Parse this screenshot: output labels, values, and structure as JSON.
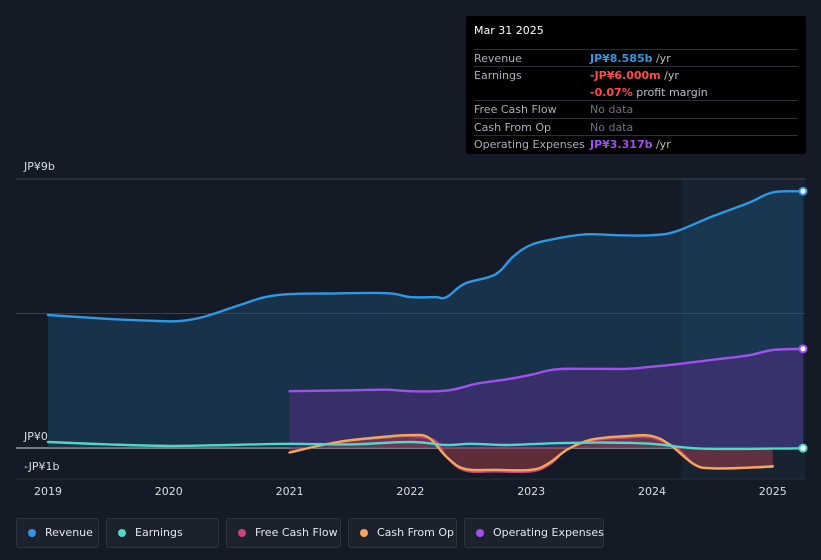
{
  "chart_data": {
    "type": "area",
    "y_axis_labels": {
      "top": "JP¥9b",
      "zero": "JP¥0",
      "bottom": "-JP¥1b"
    },
    "ylim": [
      -1,
      9
    ],
    "x_ticks": [
      "2019",
      "2020",
      "2021",
      "2022",
      "2023",
      "2024",
      "2025"
    ],
    "xlim": [
      2019.0,
      2025.25
    ],
    "forecast_region_start": 2024.25,
    "series": [
      {
        "name": "Revenue",
        "color": "#2f97e3",
        "points": [
          [
            2019.0,
            4.45
          ],
          [
            2019.5,
            4.32
          ],
          [
            2019.9,
            4.25
          ],
          [
            2020.1,
            4.25
          ],
          [
            2020.3,
            4.4
          ],
          [
            2020.6,
            4.8
          ],
          [
            2020.8,
            5.05
          ],
          [
            2021.0,
            5.15
          ],
          [
            2021.3,
            5.17
          ],
          [
            2021.8,
            5.18
          ],
          [
            2022.0,
            5.05
          ],
          [
            2022.2,
            5.05
          ],
          [
            2022.3,
            5.05
          ],
          [
            2022.45,
            5.5
          ],
          [
            2022.7,
            5.8
          ],
          [
            2022.85,
            6.4
          ],
          [
            2023.0,
            6.8
          ],
          [
            2023.2,
            7.0
          ],
          [
            2023.45,
            7.15
          ],
          [
            2023.7,
            7.12
          ],
          [
            2024.0,
            7.12
          ],
          [
            2024.2,
            7.25
          ],
          [
            2024.5,
            7.75
          ],
          [
            2024.8,
            8.2
          ],
          [
            2025.0,
            8.55
          ],
          [
            2025.25,
            8.59
          ]
        ]
      },
      {
        "name": "Earnings",
        "color": "#4fd8c8",
        "points": [
          [
            2019.0,
            0.2
          ],
          [
            2019.5,
            0.12
          ],
          [
            2020.0,
            0.07
          ],
          [
            2020.5,
            0.1
          ],
          [
            2021.0,
            0.14
          ],
          [
            2021.5,
            0.12
          ],
          [
            2022.0,
            0.2
          ],
          [
            2022.3,
            0.1
          ],
          [
            2022.5,
            0.14
          ],
          [
            2022.8,
            0.1
          ],
          [
            2023.2,
            0.16
          ],
          [
            2023.6,
            0.18
          ],
          [
            2024.0,
            0.14
          ],
          [
            2024.4,
            -0.02
          ],
          [
            2025.0,
            -0.02
          ],
          [
            2025.25,
            -0.006
          ]
        ]
      },
      {
        "name": "Free Cash Flow",
        "color": "#c8447a",
        "points": [
          [
            2021.0,
            -0.15
          ],
          [
            2021.4,
            0.2
          ],
          [
            2021.8,
            0.35
          ],
          [
            2022.0,
            0.4
          ],
          [
            2022.2,
            0.25
          ],
          [
            2022.3,
            -0.3
          ],
          [
            2022.45,
            -0.75
          ],
          [
            2022.7,
            -0.78
          ],
          [
            2023.0,
            -0.78
          ],
          [
            2023.15,
            -0.55
          ],
          [
            2023.3,
            -0.05
          ],
          [
            2023.5,
            0.25
          ],
          [
            2023.8,
            0.35
          ],
          [
            2024.0,
            0.35
          ],
          [
            2024.2,
            0.0
          ],
          [
            2024.35,
            -0.55
          ],
          [
            2024.5,
            -0.68
          ],
          [
            2024.8,
            -0.65
          ],
          [
            2025.0,
            -0.6
          ]
        ]
      },
      {
        "name": "Cash From Op",
        "color": "#f0a85c",
        "points": [
          [
            2021.0,
            -0.15
          ],
          [
            2021.4,
            0.2
          ],
          [
            2021.8,
            0.38
          ],
          [
            2022.0,
            0.43
          ],
          [
            2022.15,
            0.35
          ],
          [
            2022.3,
            -0.3
          ],
          [
            2022.45,
            -0.7
          ],
          [
            2022.7,
            -0.73
          ],
          [
            2023.0,
            -0.73
          ],
          [
            2023.15,
            -0.5
          ],
          [
            2023.3,
            -0.05
          ],
          [
            2023.5,
            0.28
          ],
          [
            2023.8,
            0.4
          ],
          [
            2024.0,
            0.4
          ],
          [
            2024.15,
            0.1
          ],
          [
            2024.35,
            -0.55
          ],
          [
            2024.5,
            -0.68
          ],
          [
            2024.8,
            -0.66
          ],
          [
            2025.0,
            -0.62
          ]
        ]
      },
      {
        "name": "Operating Expenses",
        "color": "#a24ff0",
        "points": [
          [
            2021.0,
            1.9
          ],
          [
            2021.5,
            1.93
          ],
          [
            2021.8,
            1.95
          ],
          [
            2022.0,
            1.9
          ],
          [
            2022.3,
            1.92
          ],
          [
            2022.55,
            2.15
          ],
          [
            2022.8,
            2.3
          ],
          [
            2023.0,
            2.45
          ],
          [
            2023.2,
            2.63
          ],
          [
            2023.5,
            2.65
          ],
          [
            2023.8,
            2.65
          ],
          [
            2024.0,
            2.72
          ],
          [
            2024.2,
            2.8
          ],
          [
            2024.5,
            2.95
          ],
          [
            2024.8,
            3.1
          ],
          [
            2025.0,
            3.28
          ],
          [
            2025.25,
            3.317
          ]
        ]
      }
    ],
    "tooltip": {
      "date": "Mar 31 2025",
      "rows": [
        {
          "label": "Revenue",
          "value": "JP¥8.585b",
          "unit": " /yr",
          "color": "#2f97e3"
        },
        {
          "label": "Earnings",
          "value": "-JP¥6.000m",
          "unit": " /yr",
          "color": "#ff4d4d"
        },
        {
          "label": "",
          "value": "-0.07%",
          "unit": " profit margin",
          "color": "#ff4d4d"
        },
        {
          "label": "Free Cash Flow",
          "value": "No data",
          "unit": "",
          "color": "#6b7280"
        },
        {
          "label": "Cash From Op",
          "value": "No data",
          "unit": "",
          "color": "#6b7280"
        },
        {
          "label": "Operating Expenses",
          "value": "JP¥3.317b",
          "unit": " /yr",
          "color": "#a24ff0"
        }
      ]
    },
    "legend_placement": "bottom",
    "grid": true
  },
  "legend": [
    {
      "label": "Revenue",
      "color": "#2f97e3"
    },
    {
      "label": "Earnings",
      "color": "#4fd8c8"
    },
    {
      "label": "Free Cash Flow",
      "color": "#c8447a"
    },
    {
      "label": "Cash From Op",
      "color": "#f0a85c"
    },
    {
      "label": "Operating Expenses",
      "color": "#a24ff0"
    }
  ]
}
